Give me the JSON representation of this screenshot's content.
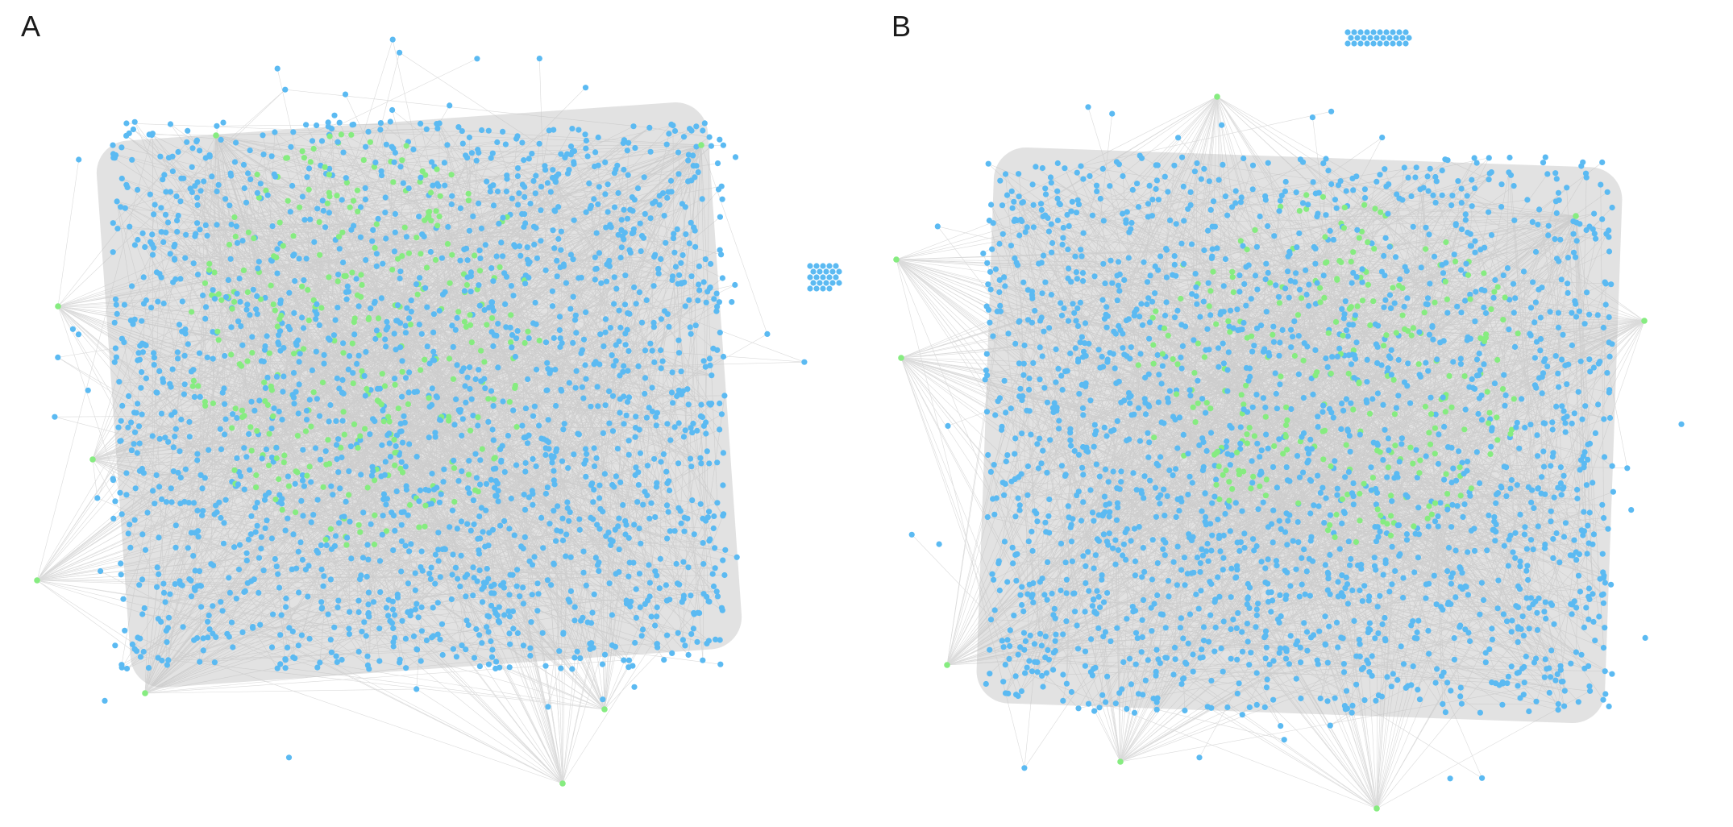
{
  "panels": [
    {
      "label": "A"
    },
    {
      "label": "B"
    }
  ],
  "colors": {
    "node_default": "#5bbaf2",
    "node_highlight": "#86ec80",
    "edge": "#bdbdbd",
    "background": "#ffffff"
  }
}
